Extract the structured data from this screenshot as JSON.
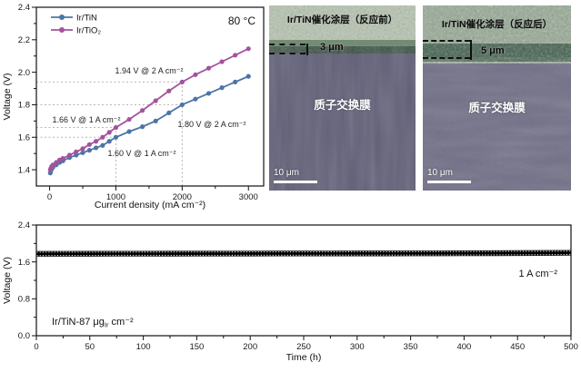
{
  "polarization": {
    "temperature_label": "80 °C",
    "xlabel": "Current density (mA cm⁻²)",
    "ylabel": "Voltage (V)"
  },
  "sem_before": {
    "title": "Ir/TiN催化涂层（反应前）",
    "thickness_label": "3 μm",
    "membrane_label": "质子交换膜",
    "scale_bar_label": "10 μm"
  },
  "sem_after": {
    "title": "Ir/TiN催化涂层（反应后）",
    "thickness_label": "5 μm",
    "membrane_label": "质子交换膜",
    "scale_bar_label": "10 μm"
  },
  "stability": {
    "xlabel": "Time (h)",
    "ylabel": "Voltage (V)",
    "current_density_label": "1 A cm⁻²",
    "catalyst_label_prefix": "Ir/TiN-87 μg",
    "catalyst_label_sub": "Ir",
    "catalyst_label_suffix": " cm⁻²"
  },
  "chart_data": [
    {
      "type": "line",
      "title": "Polarization curves",
      "xlabel": "Current density (mA cm⁻²)",
      "ylabel": "Voltage (V)",
      "xlim": [
        -200,
        3230
      ],
      "ylim": [
        1.3,
        2.4
      ],
      "xticks": {
        "major": [
          0,
          1000,
          2000,
          3000
        ],
        "minor": [
          500,
          1500,
          2500
        ]
      },
      "yticks": {
        "major": [
          1.4,
          1.6,
          1.8,
          2.0,
          2.2,
          2.4
        ],
        "minor": [
          1.5,
          1.7,
          1.9,
          2.1,
          2.3
        ]
      },
      "temperature_label": "80 °C",
      "legend_position": "top-left",
      "grid": false,
      "series": [
        {
          "name": "Ir/TiN",
          "color": "#4d74a6",
          "x": [
            10,
            20,
            30,
            50,
            100,
            150,
            200,
            300,
            400,
            500,
            600,
            700,
            800,
            900,
            1000,
            1200,
            1400,
            1600,
            1800,
            2000,
            2200,
            2400,
            2600,
            2800,
            3000
          ],
          "y": [
            1.38,
            1.395,
            1.405,
            1.415,
            1.43,
            1.445,
            1.455,
            1.475,
            1.49,
            1.505,
            1.52,
            1.535,
            1.55,
            1.575,
            1.6,
            1.635,
            1.665,
            1.7,
            1.75,
            1.8,
            1.835,
            1.87,
            1.905,
            1.94,
            1.975
          ]
        },
        {
          "name": "Ir/TiO₂",
          "color": "#a3539d",
          "x": [
            10,
            20,
            30,
            50,
            100,
            150,
            200,
            300,
            400,
            500,
            600,
            700,
            800,
            900,
            1000,
            1200,
            1400,
            1600,
            1800,
            2000,
            2200,
            2400,
            2600,
            2800,
            3000
          ],
          "y": [
            1.4,
            1.41,
            1.42,
            1.43,
            1.445,
            1.46,
            1.47,
            1.49,
            1.51,
            1.53,
            1.555,
            1.575,
            1.6,
            1.63,
            1.66,
            1.71,
            1.765,
            1.825,
            1.885,
            1.94,
            1.985,
            2.025,
            2.065,
            2.105,
            2.145
          ]
        }
      ],
      "annotations": [
        {
          "text": "1.94 V @ 2 A cm⁻²",
          "v": 1.94,
          "i": 2000
        },
        {
          "text": "1.80 V @ 2 A cm⁻²",
          "v": 1.8,
          "i": 2000
        },
        {
          "text": "1.66 V @ 1 A cm⁻²",
          "v": 1.66,
          "i": 1000
        },
        {
          "text": "1.60 V @ 1 A cm⁻²",
          "v": 1.6,
          "i": 1000
        }
      ],
      "guide_verticals": [
        {
          "i": 1000,
          "to_v": 1.66
        },
        {
          "i": 2000,
          "to_v": 1.94
        }
      ]
    },
    {
      "type": "line",
      "title": "Stability test at 1 A cm⁻²",
      "xlabel": "Time (h)",
      "ylabel": "Voltage (V)",
      "xlim": [
        0,
        500
      ],
      "ylim": [
        0,
        2.4
      ],
      "xticks": {
        "major": [
          0,
          50,
          100,
          150,
          200,
          250,
          300,
          350,
          400,
          450,
          500
        ],
        "minor": [
          25,
          75,
          125,
          175,
          225,
          275,
          325,
          375,
          425,
          475
        ]
      },
      "yticks": {
        "major": [
          0.0,
          0.8,
          1.6,
          2.4
        ],
        "minor": [
          0.4,
          1.2,
          2.0
        ]
      },
      "current_density_label": "1 A cm⁻²",
      "catalyst_label": "Ir/TiN-87 μgIr cm⁻²",
      "grid": false,
      "x": [
        0,
        25,
        50,
        75,
        100,
        125,
        150,
        175,
        200,
        225,
        250,
        275,
        300,
        325,
        350,
        375,
        400,
        425,
        450,
        475,
        500
      ],
      "v": [
        1.775,
        1.776,
        1.777,
        1.778,
        1.778,
        1.779,
        1.78,
        1.78,
        1.781,
        1.782,
        1.782,
        1.783,
        1.784,
        1.784,
        1.785,
        1.786,
        1.787,
        1.789,
        1.791,
        1.794,
        1.798
      ],
      "band_half_V": 0.055
    }
  ]
}
